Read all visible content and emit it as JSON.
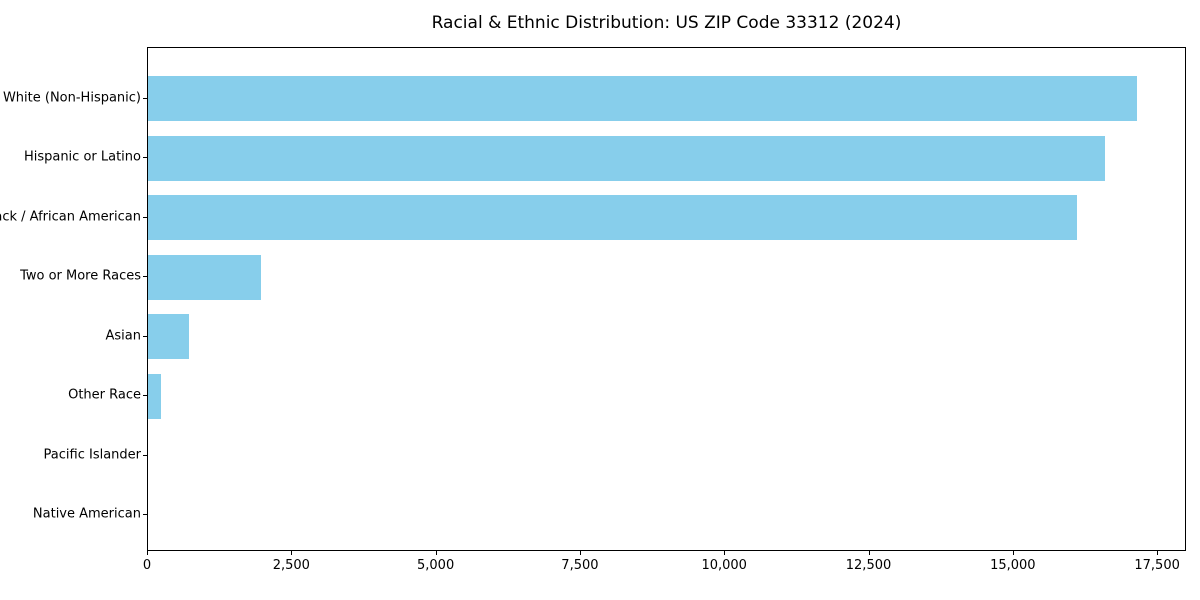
{
  "chart_data": {
    "type": "bar",
    "orientation": "horizontal",
    "title": "Racial & Ethnic Distribution: US ZIP Code 33312 (2024)",
    "categories": [
      "White (Non-Hispanic)",
      "Hispanic or Latino",
      "Black / African American",
      "Two or More Races",
      "Asian",
      "Other Race",
      "Pacific Islander",
      "Native American"
    ],
    "values": [
      17140,
      16580,
      16100,
      1960,
      710,
      230,
      0,
      0
    ],
    "xlabel": "",
    "ylabel": "",
    "xlim": [
      0,
      18000
    ],
    "x_ticks": [
      0,
      2500,
      5000,
      7500,
      10000,
      12500,
      15000,
      17500
    ],
    "x_tick_labels": [
      "0",
      "2,500",
      "5,000",
      "7,500",
      "10,000",
      "12,500",
      "15,000",
      "17,500"
    ],
    "bar_color": "#87ceeb",
    "axis_color": "#000000",
    "grid": false,
    "legend": "none"
  }
}
